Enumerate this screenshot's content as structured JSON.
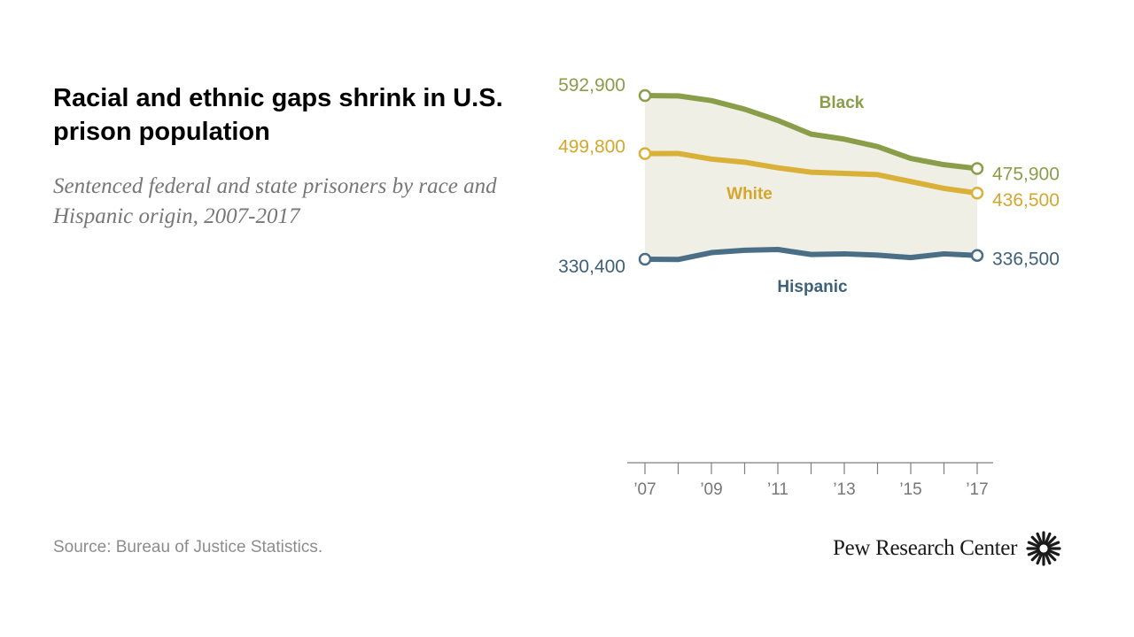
{
  "header": {
    "title": "Racial and ethnic gaps shrink in U.S. prison population",
    "subtitle": "Sentenced federal and state prisoners by race and Hispanic origin, 2007-2017"
  },
  "footer": {
    "source": "Source: Bureau of Justice Statistics.",
    "brand": "Pew Research Center"
  },
  "chart_data": {
    "type": "line",
    "title": "Racial and ethnic gaps shrink in U.S. prison population",
    "subtitle": "Sentenced federal and state prisoners by race and Hispanic origin, 2007-2017",
    "x": [
      2007,
      2008,
      2009,
      2010,
      2011,
      2012,
      2013,
      2014,
      2015,
      2016,
      2017
    ],
    "tick_labels": [
      "’07",
      "’09",
      "’11",
      "’13",
      "’15",
      "’17"
    ],
    "tick_years": [
      2007,
      2009,
      2011,
      2013,
      2015,
      2017
    ],
    "ylim": [
      0,
      600000
    ],
    "shaded_between": [
      "Black",
      "Hispanic"
    ],
    "series": [
      {
        "name": "Black",
        "color": "#8a9e4a",
        "label_color": "#8a9e4a",
        "values": [
          592900,
          592400,
          584800,
          571000,
          553000,
          531000,
          523000,
          511000,
          492000,
          482000,
          475900
        ],
        "start_label": "592,900",
        "end_label": "475,900"
      },
      {
        "name": "White",
        "color": "#d9b138",
        "label_color": "#d4a72c",
        "values": [
          499800,
          500000,
          491000,
          486000,
          477000,
          470000,
          468000,
          466000,
          455000,
          444000,
          436500
        ],
        "start_label": "499,800",
        "end_label": "436,500"
      },
      {
        "name": "Hispanic",
        "color": "#4a6e85",
        "label_color": "#3e6078",
        "values": [
          330400,
          330000,
          341000,
          344700,
          346000,
          338000,
          339000,
          337000,
          333000,
          339000,
          336500
        ],
        "start_label": "330,400",
        "end_label": "336,500"
      }
    ]
  }
}
